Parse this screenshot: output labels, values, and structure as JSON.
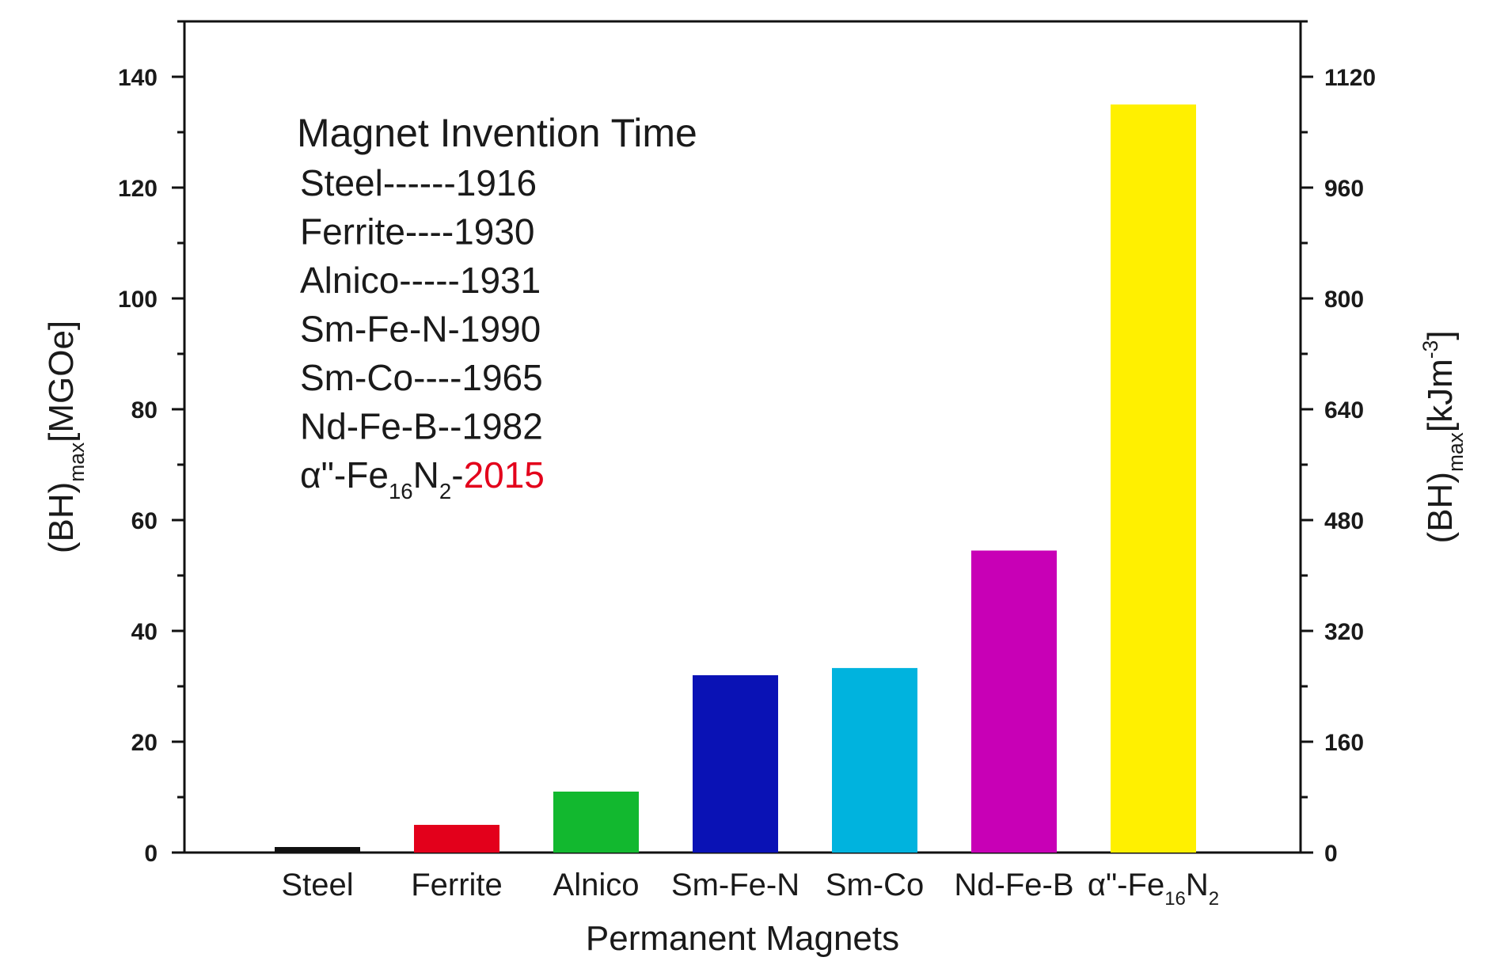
{
  "chart_data": {
    "type": "bar",
    "title": "",
    "xlabel": "Permanent Magnets",
    "ylabel": {
      "main": "(BH)",
      "sub": "max",
      "unit": "[MGOe]"
    },
    "y2label": {
      "main": "(BH)",
      "sub": "max",
      "unit": "[kJm",
      "sup": "-3",
      "close": "]"
    },
    "ylim": [
      0,
      150
    ],
    "y2lim": [
      0,
      1200
    ],
    "yticks": [
      "0",
      "20",
      "40",
      "60",
      "80",
      "100",
      "120",
      "140"
    ],
    "y2ticks": [
      "0",
      "160",
      "320",
      "480",
      "640",
      "800",
      "960",
      "1120"
    ],
    "categories": [
      {
        "text": "Steel",
        "sub": "",
        "after_sub": "",
        "sub2": ""
      },
      {
        "text": "Ferrite",
        "sub": "",
        "after_sub": "",
        "sub2": ""
      },
      {
        "text": "Alnico",
        "sub": "",
        "after_sub": "",
        "sub2": ""
      },
      {
        "text": "Sm-Fe-N",
        "sub": "",
        "after_sub": "",
        "sub2": ""
      },
      {
        "text": "Sm-Co",
        "sub": "",
        "after_sub": "",
        "sub2": ""
      },
      {
        "text": "Nd-Fe-B",
        "sub": "",
        "after_sub": "",
        "sub2": ""
      },
      {
        "text": "α\"-Fe",
        "sub": "16",
        "after_sub": "N",
        "sub2": "2"
      }
    ],
    "values": [
      1,
      5,
      11,
      32,
      33.3,
      54.5,
      135
    ],
    "colors": [
      "#111111",
      "#e3001b",
      "#12b82f",
      "#0a12b5",
      "#00b3de",
      "#c800b6",
      "#fff000"
    ],
    "grid": false,
    "annotation": {
      "title": "Magnet Invention Time",
      "lines": [
        "Steel------1916",
        "Ferrite----1930",
        "Alnico-----1931",
        "Sm-Fe-N-1990",
        "Sm-Co----1965",
        "Nd-Fe-B--1982"
      ],
      "last_line": {
        "prefix": "α\"-Fe",
        "sub1": "16",
        "mid": "N",
        "sub2": "2",
        "dash": "-",
        "year": "2015",
        "year_color": "#e3001b"
      }
    }
  }
}
